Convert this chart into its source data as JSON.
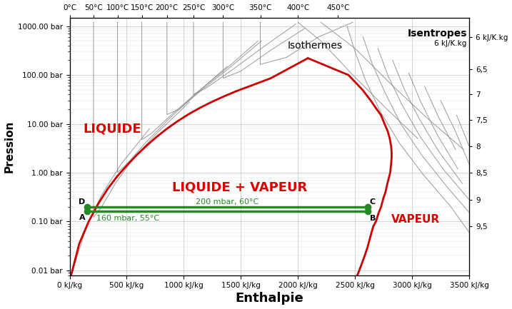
{
  "xlabel": "Enthalpie",
  "ylabel": "Pression",
  "xlim": [
    0,
    3500
  ],
  "ylim_log": [
    0.008,
    1500
  ],
  "xticks": [
    0,
    500,
    1000,
    1500,
    2000,
    2500,
    3000,
    3500
  ],
  "xtick_labels": [
    "0 kJ/kg",
    "500 kJ/kg",
    "1000 kJ/kg",
    "1500 kJ/kg",
    "2000 kJ/kg",
    "2500 kJ/kg",
    "3000 kJ/kg",
    "3500 kJ/kg"
  ],
  "yticks": [
    0.01,
    0.1,
    1.0,
    10.0,
    100.0,
    1000.0
  ],
  "ytick_labels": [
    "0.01 bar",
    "0.10 bar",
    "1.00 bar",
    "10.00 bar",
    "100.00 bar",
    "1000.00 bar"
  ],
  "top_temp_labels": [
    "0°C",
    "50°C",
    "100°C",
    "150°C",
    "200°C",
    "250°C",
    "300°C",
    "350°C",
    "400°C",
    "450°C"
  ],
  "right_entropy_labels": [
    "6 kJ/K.kg",
    "6,5",
    "7",
    "7,5",
    "8",
    "8,5",
    "9",
    "9,5"
  ],
  "bg_color": "#ffffff",
  "saturation_color": "#cc0000",
  "grid_color": "#bbbbbb",
  "curve_color": "#888888",
  "liquide_label": "LIQUIDE",
  "lv_label": "LIQUIDE + VAPEUR",
  "vapeur_label": "VAPEUR",
  "label_color_red": "#dd0000",
  "point_A": [
    155,
    0.16
  ],
  "point_B": [
    2610,
    0.16
  ],
  "point_C": [
    2610,
    0.2
  ],
  "point_D": [
    155,
    0.2
  ],
  "line_AB_label": "160 mbar, 55°C",
  "line_DC_label": "200 mbar, 60°C",
  "cycle_color": "#228B22",
  "isothermes_label": "Isothermes",
  "isentropes_label": "Isentropes",
  "isentropes_sub": "6 kJ/K.kg"
}
